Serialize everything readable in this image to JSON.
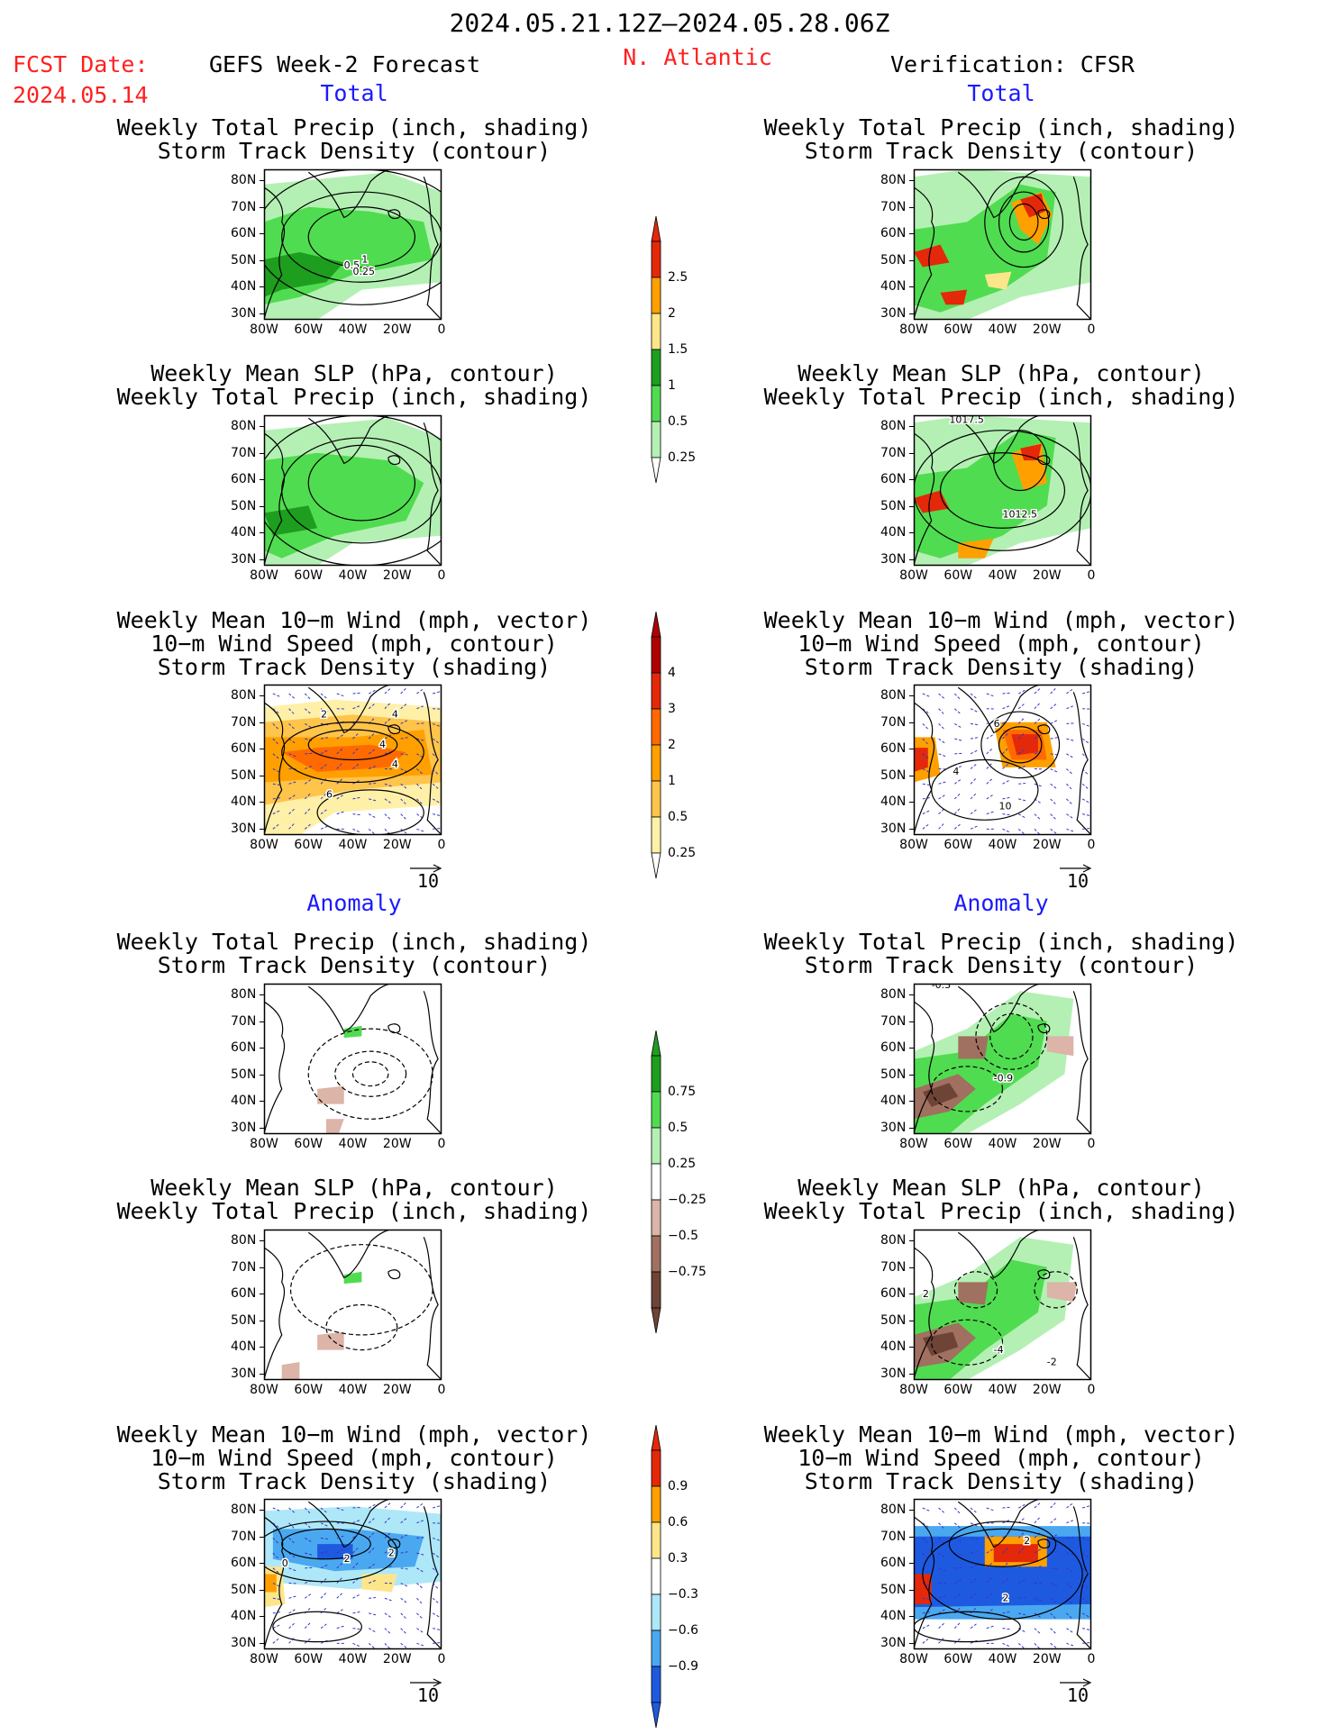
{
  "header": {
    "date_range": "2024.05.21.12Z–2024.05.28.06Z",
    "fcst_label": "FCST Date:",
    "fcst_date": "2024.05.14",
    "left_title": "GEFS Week-2 Forecast",
    "region": "N. Atlantic",
    "right_title": "Verification: CFSR"
  },
  "sections": {
    "total": "Total",
    "anomaly": "Anomaly"
  },
  "panel_titles": {
    "precip": [
      "Weekly Total Precip (inch, shading)",
      "Storm Track Density (contour)"
    ],
    "slp": [
      "Weekly Mean SLP (hPa, contour)",
      "Weekly Total Precip (inch, shading)"
    ],
    "wind": [
      "Weekly Mean 10−m Wind (mph, vector)",
      "10−m Wind Speed (mph, contour)",
      "Storm Track Density (shading)"
    ]
  },
  "axes": {
    "lat_ticks": [
      "80N",
      "70N",
      "60N",
      "50N",
      "40N",
      "30N"
    ],
    "lon_ticks": [
      "80W",
      "60W",
      "40W",
      "20W",
      "0"
    ]
  },
  "vector_ref": "10",
  "colors": {
    "green_light": "#b4f0b4",
    "green_mid": "#50dc50",
    "green_dark": "#1e9e1e",
    "yellow": "#fde68a",
    "orange": "#ffa000",
    "red": "#e4280a",
    "darkred": "#b00000",
    "brown_light": "#dcb4a8",
    "brown_mid": "#a07060",
    "brown_dark": "#6e4436",
    "blue_light": "#aee8f8",
    "blue_mid": "#4aa8f0",
    "blue_dark": "#1e5ae0"
  },
  "chart_data": [
    {
      "type": "heatmap",
      "name": "gefs-total-precip",
      "title": "Weekly Total Precip (inch, shading) / Storm Track Density (contour)",
      "contour_labels": [
        "1",
        "0.5",
        "0.25"
      ]
    },
    {
      "type": "heatmap",
      "name": "cfsr-total-precip",
      "title": "Weekly Total Precip (inch, shading) / Storm Track Density (contour)",
      "contour_labels": []
    },
    {
      "type": "heatmap",
      "name": "gefs-total-slp",
      "title": "Weekly Mean SLP (hPa, contour) / Weekly Total Precip (inch, shading)",
      "contour_labels": []
    },
    {
      "type": "heatmap",
      "name": "cfsr-total-slp",
      "title": "Weekly Mean SLP (hPa, contour) / Weekly Total Precip (inch, shading)",
      "contour_labels": [
        "1017.5",
        "1012.5"
      ]
    },
    {
      "type": "heatmap",
      "name": "gefs-total-wind",
      "title": "Weekly Mean 10−m Wind (mph, vector) / 10−m Wind Speed (mph, contour) / Storm Track Density (shading)",
      "contour_labels": [
        "2",
        "4",
        "4",
        "4",
        "6"
      ]
    },
    {
      "type": "heatmap",
      "name": "cfsr-total-wind",
      "title": "Weekly Mean 10−m Wind (mph, vector) / 10−m Wind Speed (mph, contour) / Storm Track Density (shading)",
      "contour_labels": [
        "6",
        "4",
        "10"
      ]
    },
    {
      "type": "heatmap",
      "name": "gefs-anom-precip",
      "title": "Weekly Total Precip (inch, shading) / Storm Track Density (contour)",
      "contour_labels": []
    },
    {
      "type": "heatmap",
      "name": "cfsr-anom-precip",
      "title": "Weekly Total Precip (inch, shading) / Storm Track Density (contour)",
      "contour_labels": [
        "-0.3",
        "-0.9"
      ]
    },
    {
      "type": "heatmap",
      "name": "gefs-anom-slp",
      "title": "Weekly Mean SLP (hPa, contour) / Weekly Total Precip (inch, shading)",
      "contour_labels": []
    },
    {
      "type": "heatmap",
      "name": "cfsr-anom-slp",
      "title": "Weekly Mean SLP (hPa, contour) / Weekly Total Precip (inch, shading)",
      "contour_labels": [
        "2",
        "-4",
        "-2"
      ]
    },
    {
      "type": "heatmap",
      "name": "gefs-anom-wind",
      "title": "Weekly Mean 10−m Wind (mph, vector) / 10−m Wind Speed (mph, contour) / Storm Track Density (shading)",
      "contour_labels": [
        "0",
        "2",
        "2"
      ]
    },
    {
      "type": "heatmap",
      "name": "cfsr-anom-wind",
      "title": "Weekly Mean 10−m Wind (mph, vector) / 10−m Wind Speed (mph, contour) / Storm Track Density (shading)",
      "contour_labels": [
        "2",
        "2"
      ]
    }
  ],
  "colorbars": [
    {
      "name": "total-precip",
      "labels": [
        "2.5",
        "2",
        "1.5",
        "1",
        "0.5",
        "0.25"
      ],
      "colors": [
        "#e4280a",
        "#ffa000",
        "#fde68a",
        "#1e9e1e",
        "#50dc50",
        "#b4f0b4"
      ]
    },
    {
      "name": "total-storm",
      "labels": [
        "4",
        "3",
        "2",
        "1",
        "0.5",
        "0.25"
      ],
      "colors": [
        "#b00000",
        "#e4280a",
        "#ff6a00",
        "#ffa000",
        "#ffc44a",
        "#fff0a8"
      ]
    },
    {
      "name": "anom-precip",
      "labels": [
        "0.75",
        "0.5",
        "0.25",
        "−0.25",
        "−0.5",
        "−0.75"
      ],
      "colors": [
        "#1e9e1e",
        "#50dc50",
        "#b4f0b4",
        "#ffffff",
        "#dcb4a8",
        "#a07060",
        "#6e4436"
      ]
    },
    {
      "name": "anom-storm",
      "labels": [
        "0.9",
        "0.6",
        "0.3",
        "−0.3",
        "−0.6",
        "−0.9"
      ],
      "colors": [
        "#e4280a",
        "#ffa000",
        "#fde68a",
        "#ffffff",
        "#aee8f8",
        "#4aa8f0",
        "#1e5ae0"
      ]
    }
  ]
}
